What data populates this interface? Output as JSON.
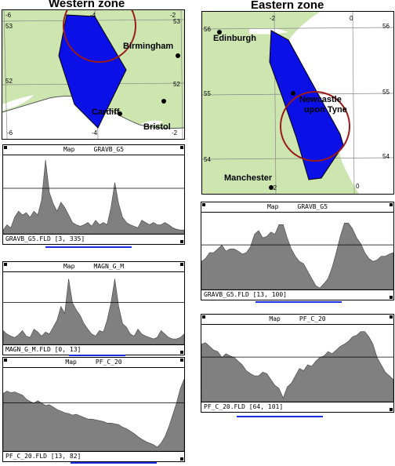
{
  "western": {
    "title": "Western zone",
    "map": {
      "labels": [
        "Birmingham",
        "Cardiff",
        "Bristol"
      ],
      "ticks": [
        "-6",
        "-4",
        "-2",
        "53",
        "52",
        "53",
        "52",
        "-6",
        "-4",
        "-2"
      ]
    },
    "windows": [
      {
        "title": "Map     GRAVB_G5",
        "status": "GRAVB_G5.FLD [3, 335]",
        "profile": [
          0.05,
          0.12,
          0.08,
          0.22,
          0.3,
          0.25,
          0.28,
          0.22,
          0.3,
          0.25,
          0.45,
          0.98,
          0.55,
          0.4,
          0.3,
          0.42,
          0.35,
          0.25,
          0.15,
          0.12,
          0.1,
          0.12,
          0.15,
          0.1,
          0.18,
          0.12,
          0.15,
          0.12,
          0.35,
          0.68,
          0.4,
          0.22,
          0.15,
          0.12,
          0.1,
          0.08,
          0.18,
          0.15,
          0.12,
          0.15,
          0.12,
          0.12,
          0.15,
          0.12,
          0.08,
          0.06,
          0.05,
          0.05
        ]
      },
      {
        "title": "Map     MAGN_G_M",
        "status": "MAGN_G_M.FLD [0, 13]",
        "profile": [
          0.2,
          0.15,
          0.12,
          0.1,
          0.14,
          0.2,
          0.12,
          0.1,
          0.22,
          0.18,
          0.12,
          0.18,
          0.15,
          0.25,
          0.35,
          0.55,
          0.45,
          0.95,
          0.6,
          0.5,
          0.42,
          0.3,
          0.22,
          0.15,
          0.12,
          0.2,
          0.18,
          0.35,
          0.6,
          0.95,
          0.55,
          0.3,
          0.25,
          0.15,
          0.12,
          0.22,
          0.15,
          0.12,
          0.1,
          0.08,
          0.1,
          0.2,
          0.15,
          0.1,
          0.08,
          0.08,
          0.1,
          0.15
        ]
      },
      {
        "title": "Map     PF_C_20",
        "status": "PF_C_20.FLD [13, 82]",
        "profile": [
          0.72,
          0.75,
          0.73,
          0.74,
          0.72,
          0.7,
          0.65,
          0.62,
          0.6,
          0.63,
          0.6,
          0.57,
          0.58,
          0.55,
          0.52,
          0.5,
          0.48,
          0.47,
          0.45,
          0.46,
          0.44,
          0.42,
          0.4,
          0.4,
          0.39,
          0.38,
          0.37,
          0.35,
          0.35,
          0.34,
          0.33,
          0.3,
          0.28,
          0.25,
          0.22,
          0.18,
          0.15,
          0.12,
          0.1,
          0.08,
          0.05,
          0.1,
          0.18,
          0.3,
          0.45,
          0.6,
          0.78,
          0.9
        ]
      }
    ]
  },
  "eastern": {
    "title": "Eastern zone",
    "map": {
      "labels": [
        "Edinburgh",
        "Newcastle",
        "upon Tyne",
        "Manchester"
      ],
      "ticks": [
        "-2",
        "0",
        "56",
        "56",
        "55",
        "55",
        "54",
        "54",
        "-2",
        "0"
      ]
    },
    "windows": [
      {
        "title": "Map     GRAVB_G5",
        "status": "GRAVB_G5.FLD [13, 100]",
        "profile": [
          0.38,
          0.42,
          0.5,
          0.5,
          0.55,
          0.6,
          0.52,
          0.55,
          0.55,
          0.52,
          0.48,
          0.5,
          0.58,
          0.75,
          0.8,
          0.7,
          0.72,
          0.78,
          0.75,
          0.88,
          0.88,
          0.7,
          0.55,
          0.45,
          0.38,
          0.35,
          0.25,
          0.15,
          0.05,
          0.02,
          0.08,
          0.15,
          0.3,
          0.5,
          0.72,
          0.9,
          0.9,
          0.82,
          0.7,
          0.62,
          0.5,
          0.42,
          0.38,
          0.4,
          0.45,
          0.45,
          0.48,
          0.5
        ]
      },
      {
        "title": "Map     PF_C_20",
        "status": "PF_C_20.FLD [64, 101]",
        "profile": [
          0.78,
          0.8,
          0.75,
          0.7,
          0.68,
          0.6,
          0.65,
          0.62,
          0.6,
          0.55,
          0.5,
          0.42,
          0.38,
          0.35,
          0.35,
          0.4,
          0.38,
          0.3,
          0.22,
          0.18,
          0.05,
          0.2,
          0.25,
          0.35,
          0.45,
          0.42,
          0.5,
          0.48,
          0.55,
          0.6,
          0.62,
          0.68,
          0.65,
          0.7,
          0.75,
          0.78,
          0.82,
          0.88,
          0.9,
          0.95,
          0.95,
          0.88,
          0.78,
          0.6,
          0.5,
          0.4,
          0.35,
          0.3
        ]
      }
    ]
  },
  "colors": {
    "zone_fill": "#0a10e6",
    "circle": "#9a1b1b",
    "land": "#cde6b0",
    "sea": "#ffffff",
    "profile_fill": "#808080",
    "scale_bar": "#1a2ee0"
  }
}
